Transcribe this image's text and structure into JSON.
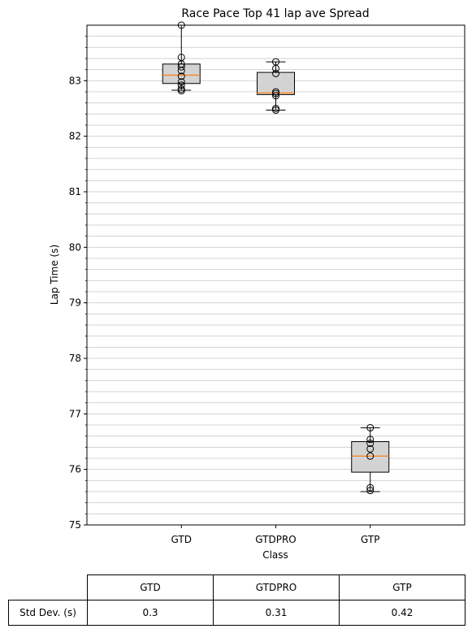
{
  "chart_data": {
    "type": "box",
    "title": "Race Pace Top 41 lap ave Spread",
    "xlabel": "Class",
    "ylabel": "Lap Time (s)",
    "categories": [
      "GTD",
      "GTDPRO",
      "GTP"
    ],
    "ylim": [
      75,
      84
    ],
    "yticks": [
      75,
      76,
      77,
      78,
      79,
      80,
      81,
      82,
      83
    ],
    "grid": "y-minor",
    "boxes": [
      {
        "name": "GTD",
        "q1": 82.95,
        "median": 83.1,
        "q3": 83.3,
        "whisker_low": 82.83,
        "whisker_high": 84.0,
        "points": [
          84.0,
          83.42,
          83.3,
          83.25,
          83.18,
          83.08,
          82.98,
          82.92,
          82.85,
          82.82
        ]
      },
      {
        "name": "GTDPRO",
        "q1": 82.75,
        "median": 82.78,
        "q3": 83.15,
        "whisker_low": 82.47,
        "whisker_high": 83.34,
        "points": [
          83.34,
          83.22,
          83.13,
          82.8,
          82.77,
          82.73,
          82.5,
          82.47
        ]
      },
      {
        "name": "GTP",
        "q1": 75.95,
        "median": 76.24,
        "q3": 76.5,
        "whisker_low": 75.6,
        "whisker_high": 76.75,
        "points": [
          76.75,
          76.54,
          76.47,
          76.37,
          76.24,
          75.67,
          75.62
        ]
      }
    ],
    "colors": {
      "box_fill": "#d3d3d3",
      "median": "#ff7f0e",
      "grid": "#d3d3d3"
    }
  },
  "table": {
    "row_label": "Std Dev. (s)",
    "headers": [
      "GTD",
      "GTDPRO",
      "GTP"
    ],
    "values": [
      "0.3",
      "0.31",
      "0.42"
    ]
  }
}
